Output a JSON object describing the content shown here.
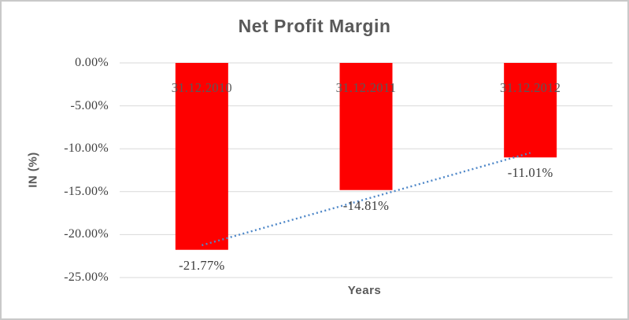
{
  "window": {
    "background_color": "#FFFFFF",
    "border_color": "#C9C9C9"
  },
  "chart_data": {
    "type": "bar",
    "title": "Net Profit Margin",
    "xlabel": "Years",
    "ylabel": "IN (%)",
    "categories": [
      "31.12.2010",
      "31.12.2011",
      "31.12.2012"
    ],
    "values": [
      -21.77,
      -14.81,
      -11.01
    ],
    "data_labels": [
      "-21.77%",
      "-14.81%",
      "-11.01%"
    ],
    "bar_color": "#FE0000",
    "ylim": [
      -25,
      0
    ],
    "yticks": [
      {
        "value": 0,
        "label": "0.00%"
      },
      {
        "value": -5,
        "label": "-5.00%"
      },
      {
        "value": -10,
        "label": "-10.00%"
      },
      {
        "value": -15,
        "label": "-15.00%"
      },
      {
        "value": -20,
        "label": "-20.00%"
      },
      {
        "value": -25,
        "label": "-25.00%"
      }
    ],
    "grid": "horizontal",
    "gridline_color": "#D9D9D9",
    "legend": "none",
    "trendline": {
      "type": "linear",
      "style": "dotted",
      "color": "#4E87C8",
      "start_value": -21.24,
      "end_value": -10.48
    },
    "text_colors": {
      "title": "#595959",
      "axis_title": "#595959",
      "tick_label": "#404040",
      "category_label": "#595959",
      "data_label": "#3A3A3A"
    }
  }
}
